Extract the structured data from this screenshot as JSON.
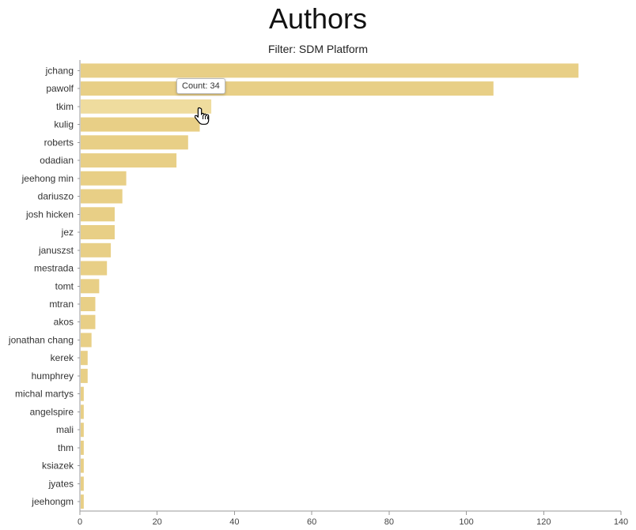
{
  "title": "Authors",
  "subtitle": "Filter: SDM Platform",
  "tooltip": {
    "label": "Count: 34"
  },
  "icons": {
    "cursor": "hand-pointer-icon"
  },
  "colors": {
    "bar": "#e8cf86",
    "bar_hover": "#efdc9e",
    "axis": "#999999"
  },
  "chart_data": {
    "type": "bar",
    "orientation": "horizontal",
    "title": "Authors",
    "subtitle": "Filter: SDM Platform",
    "categories": [
      "jchang",
      "pawolf",
      "tkim",
      "kulig",
      "roberts",
      "odadian",
      "jeehong min",
      "dariuszo",
      "josh hicken",
      "jez",
      "januszst",
      "mestrada",
      "tomt",
      "mtran",
      "akos",
      "jonathan chang",
      "kerek",
      "humphrey",
      "michal martys",
      "angelspire",
      "mali",
      "thm",
      "ksiazek",
      "jyates",
      "jeehongm"
    ],
    "values": [
      129,
      107,
      34,
      31,
      28,
      25,
      12,
      11,
      9,
      9,
      8,
      7,
      5,
      4,
      4,
      3,
      2,
      2,
      1,
      1,
      1,
      1,
      1,
      1,
      1
    ],
    "highlighted_category": "tkim",
    "xlim": [
      0,
      140
    ],
    "xticks": [
      0,
      20,
      40,
      60,
      80,
      100,
      120,
      140
    ],
    "xlabel": "",
    "ylabel": "",
    "grid": false,
    "legend": "none"
  }
}
